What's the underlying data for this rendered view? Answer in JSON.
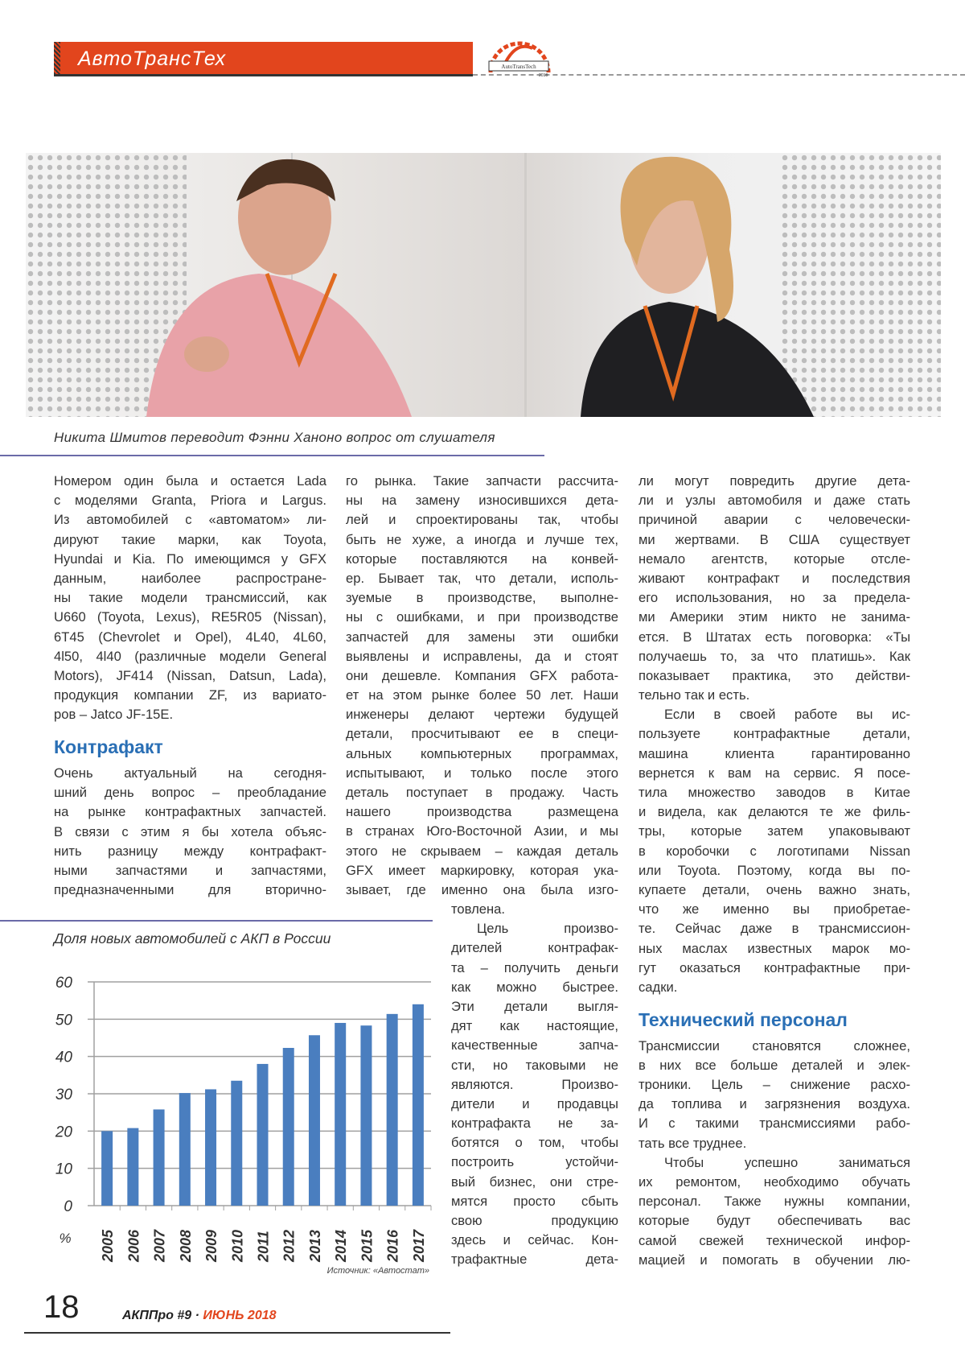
{
  "header": {
    "section_title": "АвтоТрансТех",
    "logo_text": "AutoTransTech 2018",
    "accent_color": "#e2451d"
  },
  "photo": {
    "caption": "Никита Шмитов переводит Фэнни Ханоно вопрос от слушателя"
  },
  "columns": {
    "col1": [
      {
        "type": "p",
        "indent": false,
        "lines": [
          "Номером один была и остается Lada",
          "с моделями Granta, Priora и Largus.",
          "Из автомобилей с «автоматом» ли-",
          "дируют такие марки, как Toyota,",
          "Hyundai и Kia. По имеющимся у GFX",
          "данным, наиболее распростране-",
          "ны такие модели трансмиссий, как",
          "U660 (Toyota, Lexus), RE5R05 (Nissan),",
          "6T45 (Chevrolet и Opel), 4L40, 4L60,",
          "4l50, 4l40 (различные модели General",
          "Motors), JF414 (Nissan, Datsun, Lada),",
          "продукция компании ZF, из вариато-",
          "ров – Jatco JF-15E."
        ]
      },
      {
        "type": "h",
        "text": "Контрафакт"
      },
      {
        "type": "p",
        "indent": false,
        "cont": true,
        "lines": [
          "Очень актуальный на сегодня-",
          "шний день вопрос – преобладание",
          "на рынке контрафактных запчастей.",
          "В связи с этим я бы хотела объяс-",
          "нить разницу между контрафакт-",
          "ными запчастями и запчастями,",
          "предназначенными для вторично-"
        ]
      }
    ],
    "col2_top": [
      {
        "type": "p",
        "indent": false,
        "cont": true,
        "lines": [
          "го рынка. Такие запчасти рассчита-",
          "ны на замену износившихся дета-",
          "лей и спроектированы так, чтобы",
          "быть не хуже, а иногда и лучше тех,",
          "которые поставляются на конвей-",
          "ер. Бывает так, что детали, исполь-",
          "зуемые в производстве, выполне-",
          "ны с ошибками, и при производстве",
          "запчастей для замены эти ошибки",
          "выявлены и исправлены, да и стоят",
          "они дешевле. Компания GFX работа-",
          "ет на этом рынке более 50 лет. Наши",
          "инженеры делают чертежи будущей",
          "детали, просчитывают ее в специ-",
          "альных компьютерных программах,",
          "испытывают, и только после этого",
          "деталь поступает в продажу. Часть",
          "нашего производства размещена",
          "в странах Юго-Восточной Азии, и мы",
          "этого не скрываем – каждая деталь",
          "GFX имеет маркировку, которая ука-",
          "зывает, где именно она была изго-"
        ]
      }
    ],
    "col2_bottom": [
      {
        "type": "p",
        "indent": false,
        "lines": [
          "товлена."
        ]
      },
      {
        "type": "p",
        "indent": true,
        "cont": true,
        "lines": [
          "Цель произво-",
          "дителей контрафак-",
          "та – получить деньги",
          "как можно быстрее.",
          "Эти детали выгля-",
          "дят как настоящие,",
          "качественные запча-",
          "сти, но таковыми не",
          "являются. Произво-",
          "дители и продавцы",
          "контрафакта не за-",
          "ботятся о том, чтобы",
          "построить устойчи-",
          "вый бизнес, они стре-",
          "мятся просто сбыть",
          "свою продукцию",
          "здесь и сейчас. Кон-",
          "трафактные дета-"
        ]
      }
    ],
    "col3": [
      {
        "type": "p",
        "indent": false,
        "lines": [
          "ли могут повредить другие дета-",
          "ли и узлы автомобиля и даже стать",
          "причиной аварии с человечески-",
          "ми жертвами. В США существует",
          "немало агентств, которые отсле-",
          "живают контрафакт и последствия",
          "его использования, но за предела-",
          "ми Америки этим никто не занима-",
          "ется. В Штатах есть поговорка: «Ты",
          "получаешь то, за что платишь». Как",
          "показывает практика, это действи-",
          "тельно так и есть."
        ]
      },
      {
        "type": "p",
        "indent": true,
        "lines": [
          "Если в своей работе вы ис-",
          "пользуете контрафактные детали,",
          "машина клиента гарантированно",
          "вернется к вам на сервис. Я посе-",
          "тила множество заводов в Китае",
          "и видела, как делаются те же филь-",
          "тры, которые затем упаковывают",
          "в коробочки с логотипами Nissan",
          "или Toyota. Поэтому, когда вы по-",
          "купаете детали, очень важно знать,",
          "что же именно вы приобретае-",
          "те. Сейчас даже в трансмиссион-",
          "ных маслах известных марок мо-",
          "гут оказаться контрафактные при-",
          "садки."
        ]
      },
      {
        "type": "h",
        "text": "Технический персонал"
      },
      {
        "type": "p",
        "indent": false,
        "lines": [
          "Трансмиссии становятся сложнее,",
          "в них все больше деталей и элек-",
          "троники. Цель – снижение расхо-",
          "да топлива и загрязнения воздуха.",
          "И с такими трансмиссиями рабо-",
          "тать все труднее."
        ]
      },
      {
        "type": "p",
        "indent": true,
        "cont": true,
        "lines": [
          "Чтобы успешно заниматься",
          "их ремонтом, необходимо обучать",
          "персонал. Также нужны компании,",
          "которые будут обеспечивать вас",
          "самой свежей технической инфор-",
          "мацией и помогать в обучении лю-"
        ]
      }
    ]
  },
  "chart_data": {
    "type": "bar",
    "title": "Доля новых автомобилей с АКП в России",
    "ylabel": "%",
    "categories": [
      "2005",
      "2006",
      "2007",
      "2008",
      "2009",
      "2010",
      "2011",
      "2012",
      "2013",
      "2014",
      "2015",
      "2016",
      "2017"
    ],
    "values": [
      20,
      20.8,
      25.8,
      30.2,
      31.2,
      33.5,
      38,
      42.3,
      45.7,
      49,
      48.3,
      51.4,
      54
    ],
    "ylim": [
      0,
      60
    ],
    "yticks": [
      "0",
      "10",
      "20",
      "30",
      "40",
      "50",
      "60"
    ],
    "grid": true,
    "bar_color": "#4a7ebf",
    "source": "Источник: «Автостат»"
  },
  "footer": {
    "page_number": "18",
    "magazine": "АКППро #9 ·",
    "issue_date": "ИЮНЬ 2018"
  }
}
